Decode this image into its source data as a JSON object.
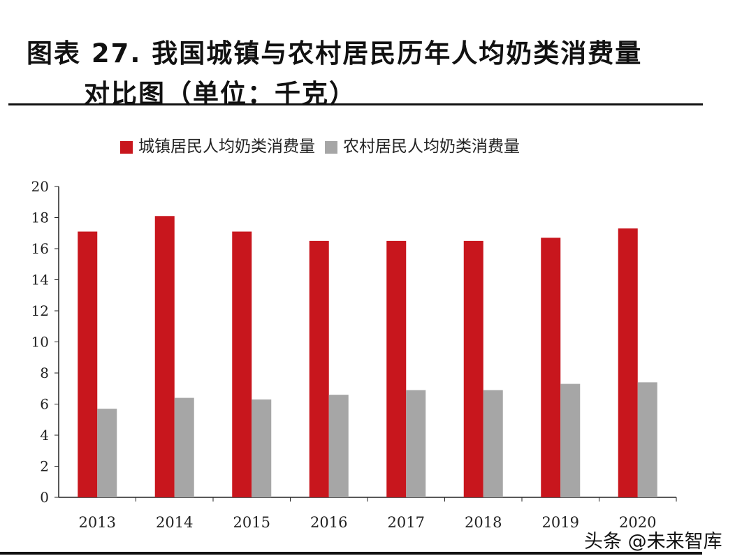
{
  "title_line1": "图表 27. 我国城镇与农村居民历年人均奶类消费量",
  "title_line2": "对比图（单位：千克）",
  "watermark": "头条 @未来智库",
  "chart_data": {
    "type": "bar",
    "title": "图表 27. 我国城镇与农村居民历年人均奶类消费量对比图（单位：千克）",
    "categories": [
      "2013",
      "2014",
      "2015",
      "2016",
      "2017",
      "2018",
      "2019",
      "2020"
    ],
    "series": [
      {
        "name": "城镇居民人均奶类消费量",
        "color": "#c8161d",
        "values": [
          17.1,
          18.1,
          17.1,
          16.5,
          16.5,
          16.5,
          16.7,
          17.3
        ]
      },
      {
        "name": "农村居民人均奶类消费量",
        "color": "#a6a6a6",
        "values": [
          5.7,
          6.4,
          6.3,
          6.6,
          6.9,
          6.9,
          7.3,
          7.4
        ]
      }
    ],
    "ylim": [
      0,
      20
    ],
    "yticks": [
      "0",
      "2",
      "4",
      "6",
      "8",
      "10",
      "12",
      "14",
      "16",
      "18",
      "20"
    ],
    "grid": false,
    "legend": "top"
  }
}
